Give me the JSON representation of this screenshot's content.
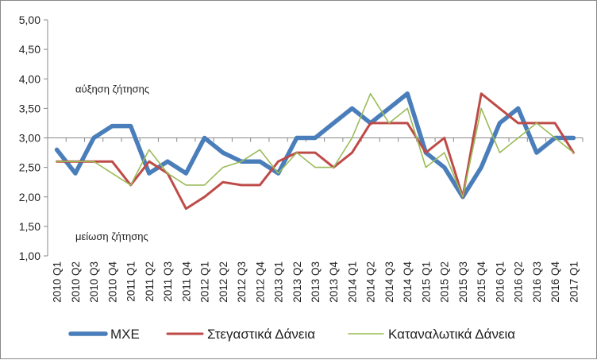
{
  "chart_data": {
    "type": "line",
    "title": "",
    "xlabel": "",
    "ylabel": "",
    "ylim": [
      1.0,
      5.0
    ],
    "ytick_step": 0.5,
    "y_reference_line": 3.0,
    "grid": false,
    "legend_position": "bottom",
    "x": [
      "2010 Q1",
      "2010 Q2",
      "2010 Q3",
      "2010 Q4",
      "2011 Q1",
      "2011 Q2",
      "2011 Q3",
      "2011 Q4",
      "2012 Q1",
      "2012 Q2",
      "2012 Q3",
      "2012 Q4",
      "2013 Q1",
      "2013 Q2",
      "2013 Q3",
      "2013 Q4",
      "2014 Q1",
      "2014 Q2",
      "2014 Q3",
      "2014 Q4",
      "2015 Q1",
      "2015 Q2",
      "2015 Q3",
      "2015 Q4",
      "2016 Q1",
      "2016 Q2",
      "2016 Q3",
      "2016 Q4",
      "2017 Q1"
    ],
    "y_tick_labels": [
      "1,00",
      "1,50",
      "2,00",
      "2,50",
      "3,00",
      "3,50",
      "4,00",
      "4,50",
      "5,00"
    ],
    "annotations": [
      {
        "text": "αύξηση ζήτησης",
        "y": 3.82
      },
      {
        "text": "μείωση ζήτησης",
        "y": 1.32
      }
    ],
    "series": [
      {
        "name": "ΜΧΕ",
        "color": "#4a7ebb",
        "values": [
          2.8,
          2.4,
          3.0,
          3.2,
          3.2,
          2.4,
          2.6,
          2.4,
          3.0,
          2.75,
          2.6,
          2.6,
          2.4,
          3.0,
          3.0,
          3.25,
          3.5,
          3.25,
          3.5,
          3.75,
          2.75,
          2.5,
          2.0,
          2.5,
          3.25,
          3.5,
          2.75,
          3.0,
          3.0
        ]
      },
      {
        "name": "Στεγαστικά Δάνεια",
        "color": "#be4b48",
        "values": [
          2.6,
          2.6,
          2.6,
          2.6,
          2.2,
          2.6,
          2.4,
          1.8,
          2.0,
          2.25,
          2.2,
          2.2,
          2.6,
          2.75,
          2.75,
          2.5,
          2.75,
          3.25,
          3.25,
          3.25,
          2.75,
          3.0,
          2.0,
          3.75,
          3.5,
          3.25,
          3.25,
          3.25,
          2.75
        ]
      },
      {
        "name": "Καταναλωτικά Δάνεια",
        "color": "#9bbb59",
        "values": [
          2.6,
          2.6,
          2.6,
          2.4,
          2.2,
          2.8,
          2.4,
          2.2,
          2.2,
          2.5,
          2.6,
          2.8,
          2.4,
          2.75,
          2.5,
          2.5,
          3.0,
          3.75,
          3.25,
          3.5,
          2.5,
          2.75,
          2.0,
          3.5,
          2.75,
          3.0,
          3.25,
          3.0,
          2.75
        ]
      }
    ]
  }
}
